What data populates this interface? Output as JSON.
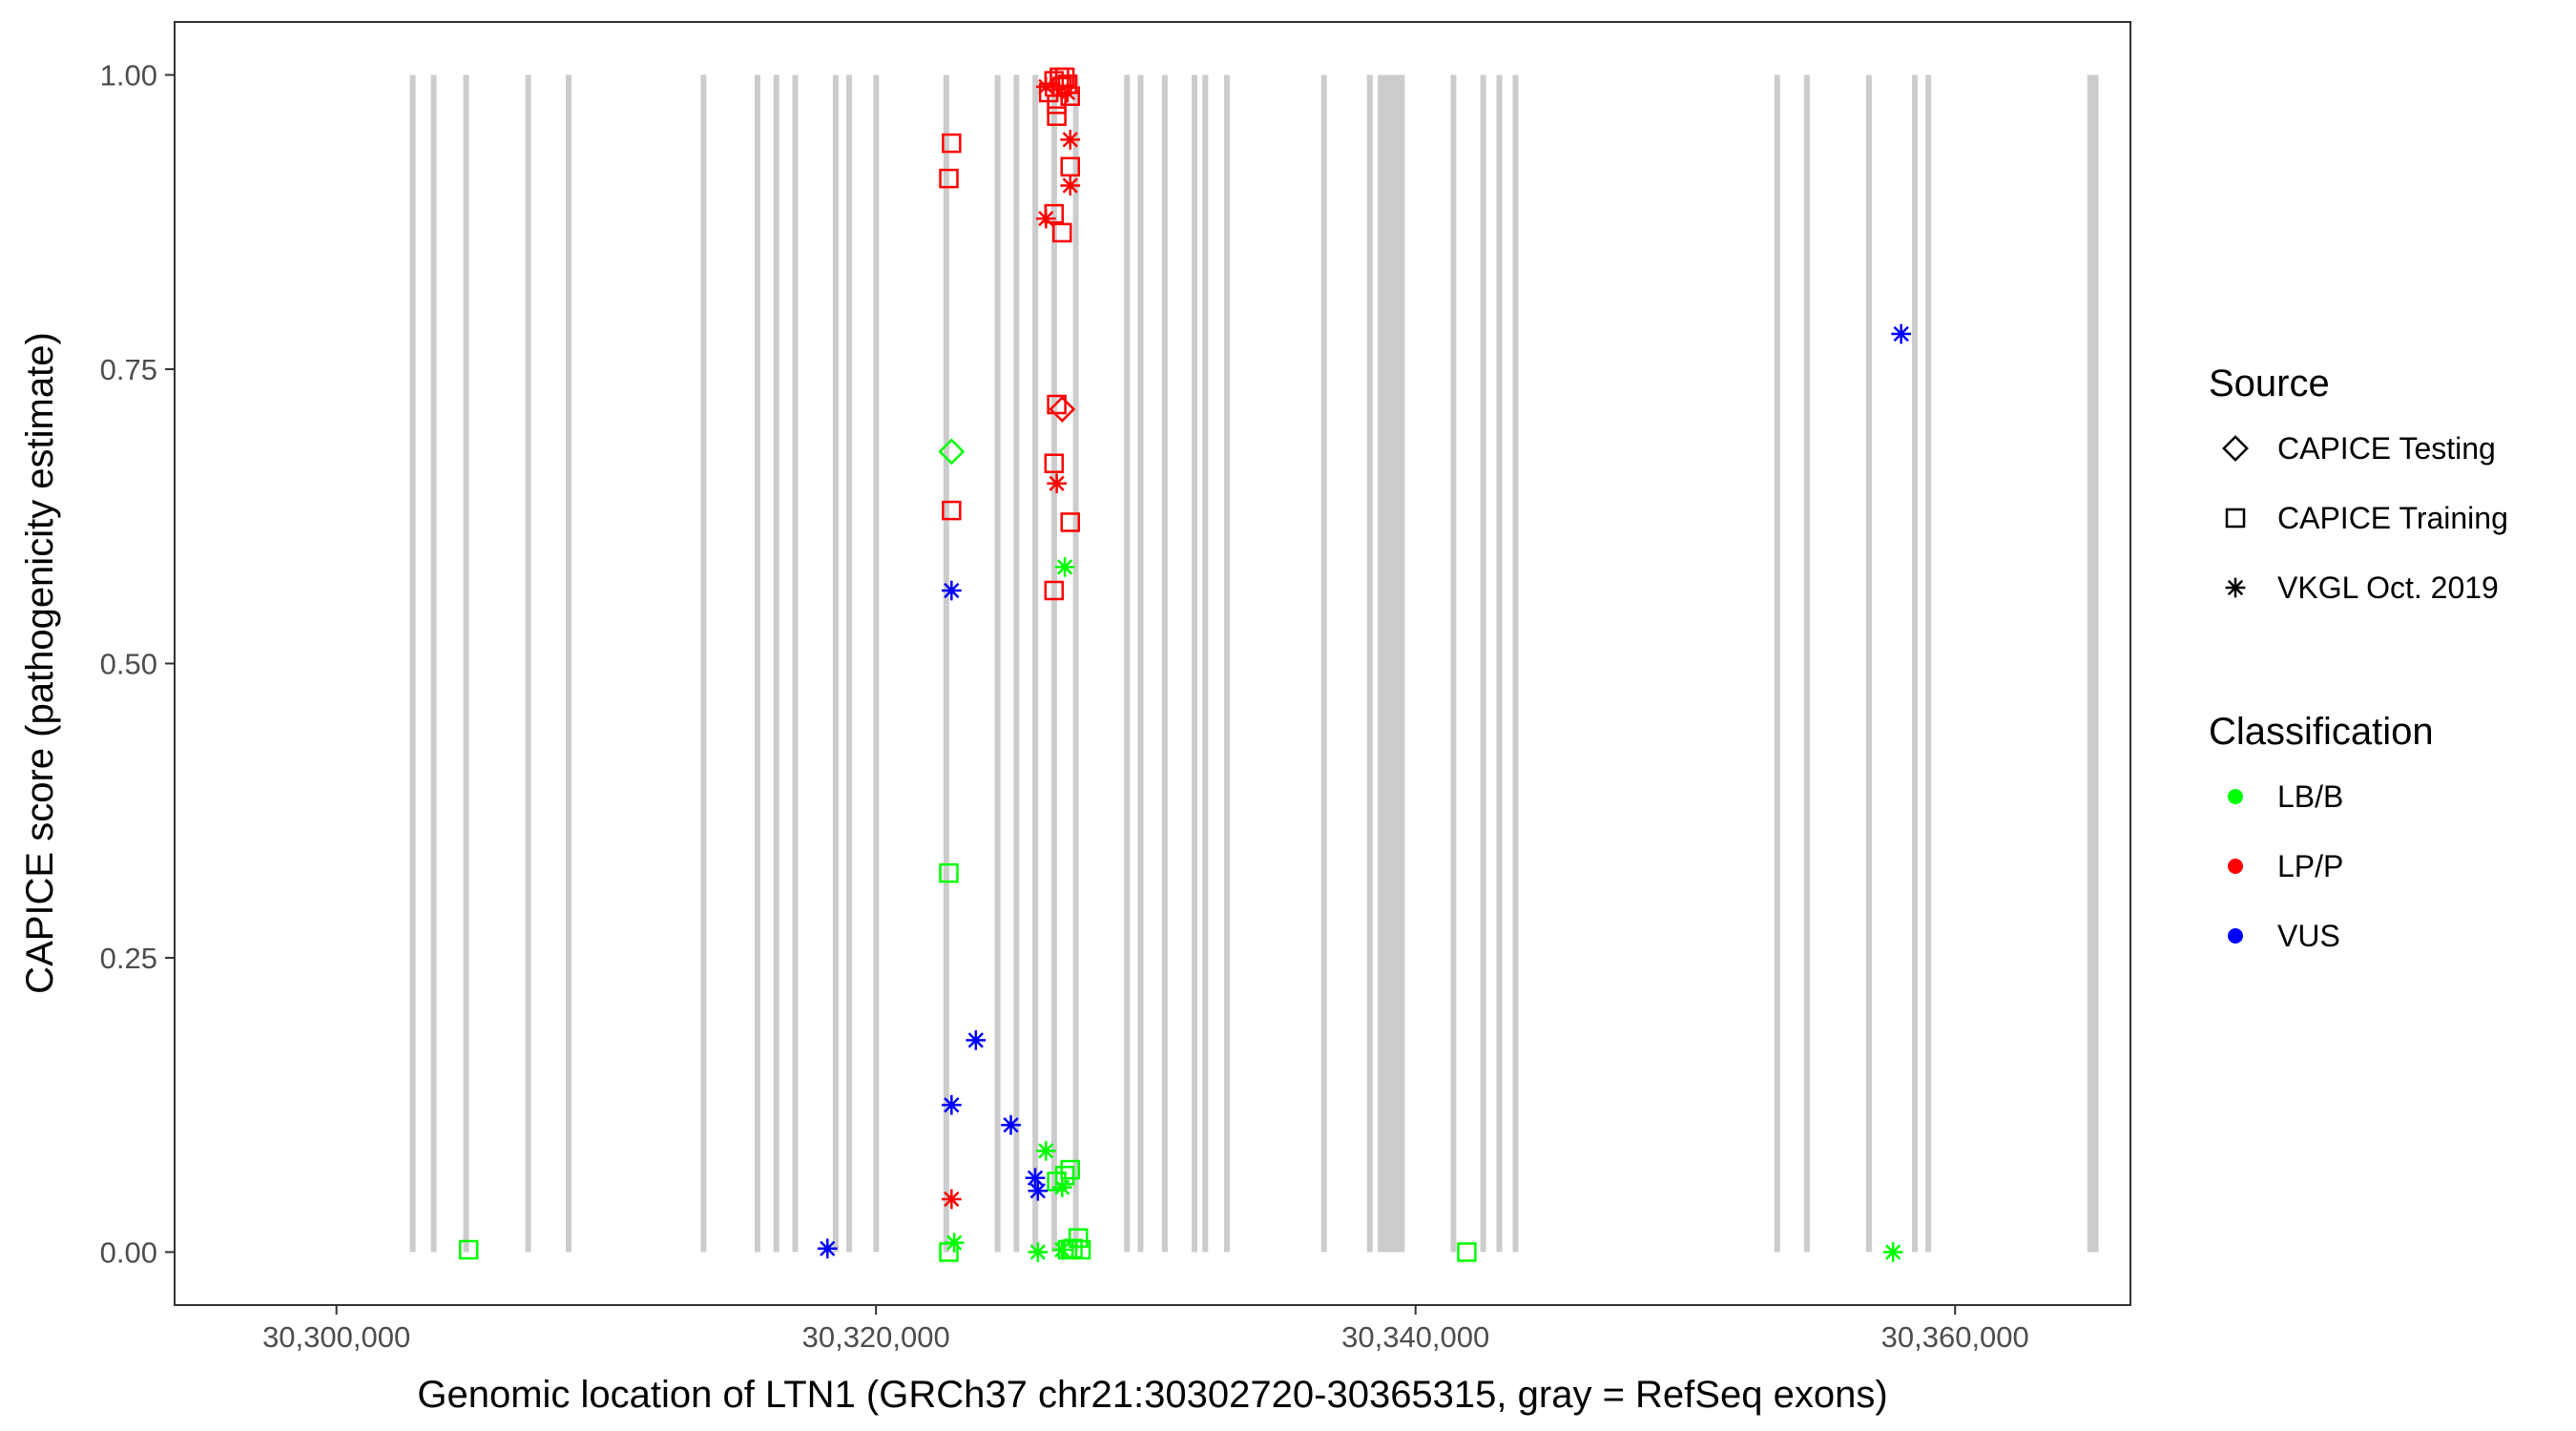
{
  "chart_data": {
    "type": "scatter",
    "title": "",
    "xlabel": "Genomic location of LTN1 (GRCh37 chr21:30302720-30365315, gray = RefSeq exons)",
    "ylabel": "CAPICE score (pathogenicity estimate)",
    "xlim": [
      30294000,
      30366500
    ],
    "ylim": [
      -0.045,
      1.045
    ],
    "x_ticks": [
      30300000,
      30320000,
      30340000,
      30360000
    ],
    "x_tick_labels": [
      "30,300,000",
      "30,320,000",
      "30,340,000",
      "30,360,000"
    ],
    "y_ticks": [
      0.0,
      0.25,
      0.5,
      0.75,
      1.0
    ],
    "y_tick_labels": [
      "0.00",
      "0.25",
      "0.50",
      "0.75",
      "1.00"
    ],
    "grid": false,
    "exon_color": "#cccccc",
    "exons": [
      [
        30302720,
        30302900
      ],
      [
        30303500,
        30303700
      ],
      [
        30304700,
        30304900
      ],
      [
        30307000,
        30307200
      ],
      [
        30308500,
        30308700
      ],
      [
        30313500,
        30313700
      ],
      [
        30315500,
        30315700
      ],
      [
        30316200,
        30316400
      ],
      [
        30316900,
        30317100
      ],
      [
        30318400,
        30318600
      ],
      [
        30318900,
        30319100
      ],
      [
        30319900,
        30320100
      ],
      [
        30322500,
        30322700
      ],
      [
        30324400,
        30324600
      ],
      [
        30325100,
        30325300
      ],
      [
        30325800,
        30326000
      ],
      [
        30326500,
        30326700
      ],
      [
        30327300,
        30327500
      ],
      [
        30329200,
        30329400
      ],
      [
        30329700,
        30329900
      ],
      [
        30330600,
        30330800
      ],
      [
        30331700,
        30331900
      ],
      [
        30332100,
        30332300
      ],
      [
        30332900,
        30333100
      ],
      [
        30336500,
        30336700
      ],
      [
        30338200,
        30338400
      ],
      [
        30338600,
        30339600
      ],
      [
        30341300,
        30341500
      ],
      [
        30342400,
        30342600
      ],
      [
        30343000,
        30343200
      ],
      [
        30343600,
        30343800
      ],
      [
        30353300,
        30353500
      ],
      [
        30354400,
        30354600
      ],
      [
        30356700,
        30356900
      ],
      [
        30358400,
        30358600
      ],
      [
        30358900,
        30359100
      ],
      [
        30364900,
        30365315
      ]
    ],
    "legend_placement": "right",
    "legends": [
      {
        "title": "Source",
        "entries": [
          {
            "label": "CAPICE Testing",
            "shape": "diamond"
          },
          {
            "label": "CAPICE Training",
            "shape": "square"
          },
          {
            "label": "VKGL Oct. 2019",
            "shape": "asterisk"
          }
        ]
      },
      {
        "title": "Classification",
        "entries": [
          {
            "label": "LB/B",
            "color": "#00ff00"
          },
          {
            "label": "LP/P",
            "color": "#ff0000"
          },
          {
            "label": "VUS",
            "color": "#0000ff"
          }
        ]
      }
    ],
    "series": [
      {
        "name": "LB/B",
        "color": "#00ff00",
        "points": [
          {
            "x": 30304900,
            "y": 0.002,
            "shape": "square"
          },
          {
            "x": 30322700,
            "y": 0.322,
            "shape": "square"
          },
          {
            "x": 30322700,
            "y": 0.0,
            "shape": "square"
          },
          {
            "x": 30322900,
            "y": 0.008,
            "shape": "asterisk"
          },
          {
            "x": 30322800,
            "y": 0.68,
            "shape": "diamond"
          },
          {
            "x": 30326000,
            "y": 0.0,
            "shape": "asterisk"
          },
          {
            "x": 30326300,
            "y": 0.086,
            "shape": "asterisk"
          },
          {
            "x": 30326700,
            "y": 0.06,
            "shape": "square"
          },
          {
            "x": 30326900,
            "y": 0.055,
            "shape": "asterisk"
          },
          {
            "x": 30327000,
            "y": 0.065,
            "shape": "square"
          },
          {
            "x": 30327200,
            "y": 0.07,
            "shape": "square"
          },
          {
            "x": 30327000,
            "y": 0.582,
            "shape": "asterisk"
          },
          {
            "x": 30326900,
            "y": 0.002,
            "shape": "asterisk"
          },
          {
            "x": 30327100,
            "y": 0.002,
            "shape": "square"
          },
          {
            "x": 30327300,
            "y": 0.003,
            "shape": "square"
          },
          {
            "x": 30327500,
            "y": 0.012,
            "shape": "square"
          },
          {
            "x": 30327600,
            "y": 0.002,
            "shape": "square"
          },
          {
            "x": 30341900,
            "y": 0.0,
            "shape": "square"
          },
          {
            "x": 30357700,
            "y": 0.0,
            "shape": "asterisk"
          }
        ]
      },
      {
        "name": "LP/P",
        "color": "#ff0000",
        "points": [
          {
            "x": 30322700,
            "y": 0.912,
            "shape": "square"
          },
          {
            "x": 30322800,
            "y": 0.942,
            "shape": "square"
          },
          {
            "x": 30322800,
            "y": 0.63,
            "shape": "square"
          },
          {
            "x": 30322800,
            "y": 0.045,
            "shape": "asterisk"
          },
          {
            "x": 30326300,
            "y": 0.878,
            "shape": "asterisk"
          },
          {
            "x": 30326600,
            "y": 0.882,
            "shape": "square"
          },
          {
            "x": 30326900,
            "y": 0.866,
            "shape": "square"
          },
          {
            "x": 30327200,
            "y": 0.906,
            "shape": "asterisk"
          },
          {
            "x": 30327200,
            "y": 0.922,
            "shape": "square"
          },
          {
            "x": 30327200,
            "y": 0.945,
            "shape": "asterisk"
          },
          {
            "x": 30326300,
            "y": 0.99,
            "shape": "asterisk"
          },
          {
            "x": 30326400,
            "y": 0.985,
            "shape": "square"
          },
          {
            "x": 30326600,
            "y": 0.995,
            "shape": "square"
          },
          {
            "x": 30326700,
            "y": 0.975,
            "shape": "square"
          },
          {
            "x": 30326700,
            "y": 0.965,
            "shape": "square"
          },
          {
            "x": 30326800,
            "y": 0.998,
            "shape": "square"
          },
          {
            "x": 30326900,
            "y": 0.99,
            "shape": "square"
          },
          {
            "x": 30327000,
            "y": 0.998,
            "shape": "square"
          },
          {
            "x": 30327100,
            "y": 0.992,
            "shape": "square"
          },
          {
            "x": 30327100,
            "y": 0.985,
            "shape": "asterisk"
          },
          {
            "x": 30327200,
            "y": 0.982,
            "shape": "square"
          },
          {
            "x": 30326700,
            "y": 0.72,
            "shape": "square"
          },
          {
            "x": 30326900,
            "y": 0.716,
            "shape": "diamond"
          },
          {
            "x": 30326600,
            "y": 0.67,
            "shape": "square"
          },
          {
            "x": 30326700,
            "y": 0.653,
            "shape": "asterisk"
          },
          {
            "x": 30327200,
            "y": 0.62,
            "shape": "square"
          },
          {
            "x": 30326600,
            "y": 0.562,
            "shape": "square"
          }
        ]
      },
      {
        "name": "VUS",
        "color": "#0000ff",
        "points": [
          {
            "x": 30318200,
            "y": 0.003,
            "shape": "asterisk"
          },
          {
            "x": 30322800,
            "y": 0.562,
            "shape": "asterisk"
          },
          {
            "x": 30322800,
            "y": 0.125,
            "shape": "asterisk"
          },
          {
            "x": 30323700,
            "y": 0.18,
            "shape": "asterisk"
          },
          {
            "x": 30325000,
            "y": 0.108,
            "shape": "asterisk"
          },
          {
            "x": 30325900,
            "y": 0.063,
            "shape": "asterisk"
          },
          {
            "x": 30326000,
            "y": 0.052,
            "shape": "asterisk"
          },
          {
            "x": 30358000,
            "y": 0.78,
            "shape": "asterisk"
          }
        ]
      }
    ]
  }
}
